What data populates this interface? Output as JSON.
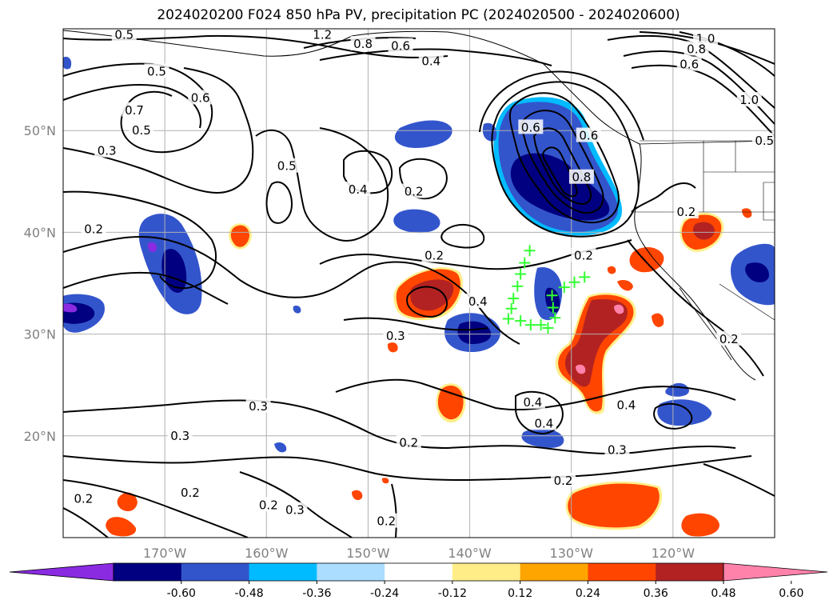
{
  "title": "2024020200 F024 850 hPa PV, precipitation PC (2024020500 - 2024020600)",
  "map": {
    "lon_range": [
      -180,
      -110
    ],
    "lat_range": [
      10,
      60
    ],
    "lon_ticks": [
      {
        "value": -170,
        "label": "170°W"
      },
      {
        "value": -160,
        "label": "160°W"
      },
      {
        "value": -150,
        "label": "150°W"
      },
      {
        "value": -140,
        "label": "140°W"
      },
      {
        "value": -130,
        "label": "130°W"
      },
      {
        "value": -120,
        "label": "120°W"
      }
    ],
    "lat_ticks": [
      {
        "value": 20,
        "label": "20°N"
      },
      {
        "value": 30,
        "label": "30°N"
      },
      {
        "value": 40,
        "label": "40°N"
      },
      {
        "value": 50,
        "label": "50°N"
      }
    ],
    "grid": true
  },
  "contour_labels": [
    {
      "text": "0.5",
      "lon": -174.0,
      "lat": 59.4
    },
    {
      "text": "1.2",
      "lon": -154.5,
      "lat": 59.4
    },
    {
      "text": "0.8",
      "lon": -150.5,
      "lat": 58.5
    },
    {
      "text": "0.6",
      "lon": -146.8,
      "lat": 58.3
    },
    {
      "text": "0.4",
      "lon": -143.8,
      "lat": 56.8
    },
    {
      "text": "0.5",
      "lon": -170.8,
      "lat": 55.8
    },
    {
      "text": "0.6",
      "lon": -166.5,
      "lat": 53.2
    },
    {
      "text": "0.7",
      "lon": -173.0,
      "lat": 52.0
    },
    {
      "text": "0.5",
      "lon": -172.3,
      "lat": 50.0
    },
    {
      "text": "0.3",
      "lon": -175.7,
      "lat": 48.0
    },
    {
      "text": "0.5",
      "lon": -158.0,
      "lat": 46.5
    },
    {
      "text": "0.4",
      "lon": -151.0,
      "lat": 44.2
    },
    {
      "text": "0.2",
      "lon": -145.5,
      "lat": 44.0
    },
    {
      "text": "0.2",
      "lon": -177.0,
      "lat": 40.3
    },
    {
      "text": "0.6",
      "lon": -134.0,
      "lat": 50.3
    },
    {
      "text": "0.6",
      "lon": -128.3,
      "lat": 49.5
    },
    {
      "text": "0.8",
      "lon": -129.0,
      "lat": 45.4
    },
    {
      "text": "1.0",
      "lon": -116.8,
      "lat": 59.0
    },
    {
      "text": "0.8",
      "lon": -117.7,
      "lat": 58.0
    },
    {
      "text": "0.6",
      "lon": -118.4,
      "lat": 56.5
    },
    {
      "text": "1.0",
      "lon": -112.5,
      "lat": 53.0
    },
    {
      "text": "0.5",
      "lon": -111.0,
      "lat": 49.0
    },
    {
      "text": "0.2",
      "lon": -118.7,
      "lat": 42.0
    },
    {
      "text": "0.2",
      "lon": -143.5,
      "lat": 37.7
    },
    {
      "text": "0.2",
      "lon": -128.8,
      "lat": 37.7
    },
    {
      "text": "0.4",
      "lon": -139.2,
      "lat": 33.2
    },
    {
      "text": "0.3",
      "lon": -147.3,
      "lat": 29.8
    },
    {
      "text": "0.2",
      "lon": -114.5,
      "lat": 29.5
    },
    {
      "text": "0.4",
      "lon": -133.8,
      "lat": 23.3
    },
    {
      "text": "0.4",
      "lon": -132.7,
      "lat": 21.2
    },
    {
      "text": "0.4",
      "lon": -124.6,
      "lat": 23.0
    },
    {
      "text": "0.3",
      "lon": -160.8,
      "lat": 22.9
    },
    {
      "text": "0.3",
      "lon": -168.5,
      "lat": 20.0
    },
    {
      "text": "0.2",
      "lon": -146.0,
      "lat": 19.3
    },
    {
      "text": "0.3",
      "lon": -125.5,
      "lat": 18.6
    },
    {
      "text": "0.2",
      "lon": -130.8,
      "lat": 15.6
    },
    {
      "text": "0.2",
      "lon": -178.0,
      "lat": 13.8
    },
    {
      "text": "0.2",
      "lon": -167.5,
      "lat": 14.4
    },
    {
      "text": "0.2",
      "lon": -159.8,
      "lat": 13.2
    },
    {
      "text": "0.3",
      "lon": -157.2,
      "lat": 12.7
    },
    {
      "text": "0.2",
      "lon": -148.2,
      "lat": 11.6
    }
  ],
  "markers": [
    {
      "lon": -134.1,
      "lat": 38.2
    },
    {
      "lon": -134.6,
      "lat": 37.0
    },
    {
      "lon": -135.0,
      "lat": 35.9
    },
    {
      "lon": -135.3,
      "lat": 34.7
    },
    {
      "lon": -135.7,
      "lat": 33.5
    },
    {
      "lon": -135.9,
      "lat": 32.5
    },
    {
      "lon": -136.2,
      "lat": 31.5
    },
    {
      "lon": -135.0,
      "lat": 31.3
    },
    {
      "lon": -134.0,
      "lat": 30.9
    },
    {
      "lon": -133.0,
      "lat": 30.9
    },
    {
      "lon": -132.3,
      "lat": 30.6
    },
    {
      "lon": -131.6,
      "lat": 31.6
    },
    {
      "lon": -131.8,
      "lat": 32.6
    },
    {
      "lon": -131.9,
      "lat": 33.8
    },
    {
      "lon": -130.7,
      "lat": 34.6
    },
    {
      "lon": -129.7,
      "lat": 35.1
    },
    {
      "lon": -128.7,
      "lat": 35.6
    }
  ],
  "colors": {
    "purple": "#8a2be2",
    "navy": "#000080",
    "blue": "#3355cc",
    "cyan": "#00bbff",
    "lightblue": "#aaddff",
    "white": "#ffffff",
    "yellow": "#ffee88",
    "orange": "#ffa500",
    "redorange": "#ff4500",
    "darkred": "#b22222",
    "pink": "#ff82ab",
    "marker": "#33ff33",
    "contour": "#000000",
    "grid": "#b0b0b0"
  },
  "colorbar": {
    "bins": [
      "purple",
      "navy",
      "blue",
      "cyan",
      "lightblue",
      "white",
      "yellow",
      "orange",
      "redorange",
      "darkred",
      "pink"
    ],
    "tick_labels": [
      "-0.60",
      "-0.48",
      "-0.36",
      "-0.24",
      "-0.12",
      "0.12",
      "0.24",
      "0.36",
      "0.48",
      "0.60"
    ],
    "extend": "both"
  }
}
